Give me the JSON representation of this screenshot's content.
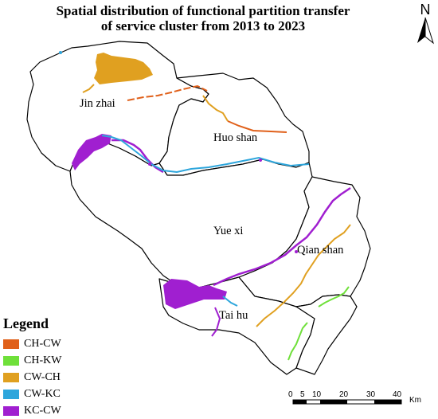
{
  "title": {
    "line1": "Spatial distribution of functional partition transfer",
    "line2": "of service cluster from 2013 to 2023"
  },
  "counties": {
    "jinzhai": "Jin zhai",
    "huoshan": "Huo shan",
    "yuexi": "Yue xi",
    "qianshan": "Qian shan",
    "taihu": "Tai hu"
  },
  "legend": {
    "title": "Legend",
    "items": [
      {
        "label": "CH-CW",
        "color": "#E0601A"
      },
      {
        "label": "CH-KW",
        "color": "#6FE03A"
      },
      {
        "label": "CW-CH",
        "color": "#E0A020"
      },
      {
        "label": "CW-KC",
        "color": "#2EA6DC"
      },
      {
        "label": "KC-CW",
        "color": "#A01FD0"
      }
    ]
  },
  "north_arrow": {
    "letter": "N"
  },
  "scale_bar": {
    "ticks": [
      "0",
      "5",
      "10",
      "20",
      "30",
      "40"
    ],
    "unit": "Km"
  }
}
